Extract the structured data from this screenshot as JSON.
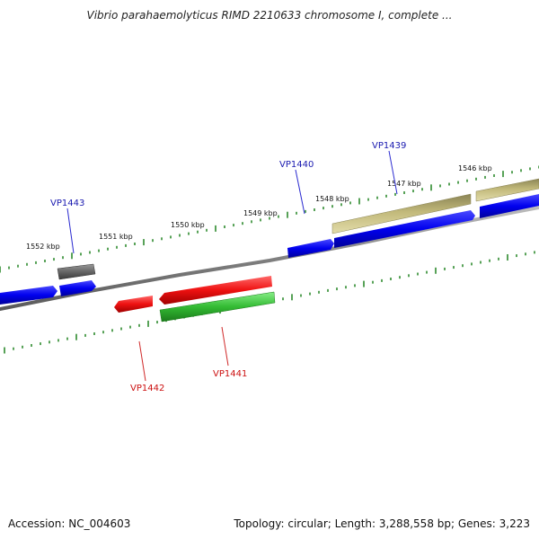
{
  "title": "Vibrio parahaemolyticus RIMD 2210633 chromosome I, complete ...",
  "footer": {
    "accession": "Accession: NC_004603",
    "summary": "Topology: circular; Length: 3,288,558 bp; Genes: 3,223"
  },
  "colors": {
    "backbone": "#808080",
    "tick": "#2e8b2e",
    "cds_forward": "#0000ee",
    "gene_forward": "#c2b97a",
    "cds_reverse": "#ee1111",
    "gene_reverse": "#33bb33",
    "other": "#666666",
    "label_forward": "#1a1ab0",
    "label_reverse": "#cc1111"
  },
  "scale_labels": [
    "1546 kbp",
    "1547 kbp",
    "1548 kbp",
    "1549 kbp",
    "1550 kbp",
    "1551 kbp",
    "1552 kbp"
  ],
  "gene_labels": [
    "VP1439",
    "VP1440",
    "VP1443",
    "VP1441",
    "VP1442"
  ]
}
